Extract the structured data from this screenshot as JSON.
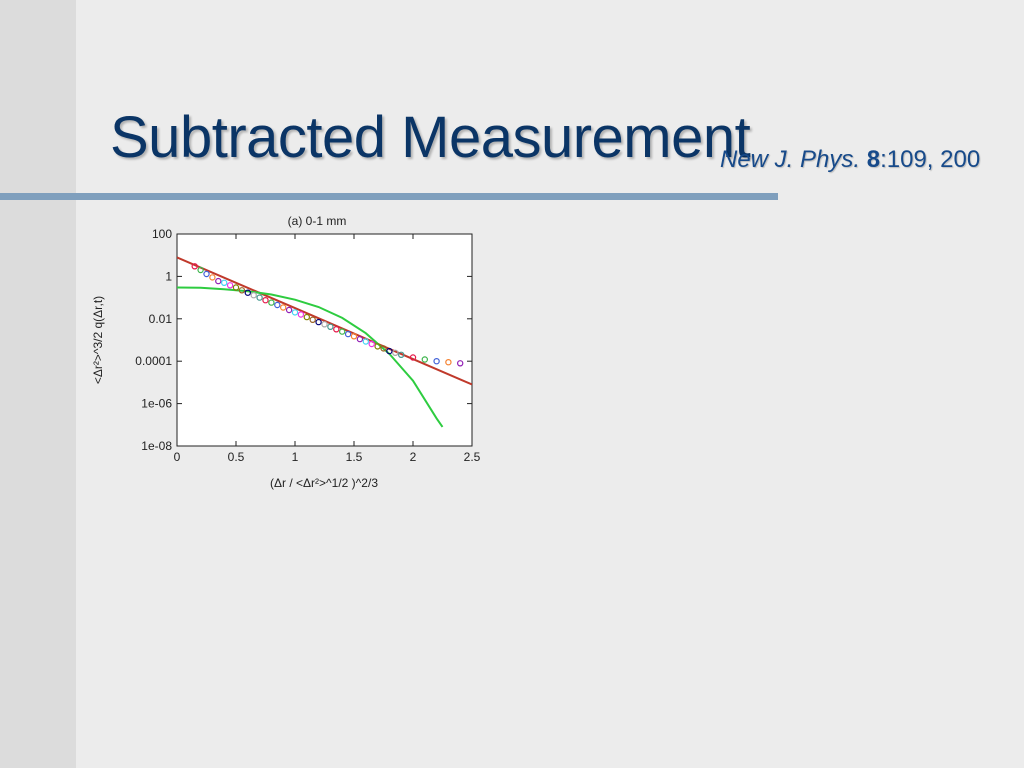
{
  "slide": {
    "title": "Subtracted Measurement",
    "citation": {
      "journal": "New J. Phys.",
      "volume": "8",
      "rest": ":109, 200"
    }
  },
  "colors": {
    "title": "#0b3566",
    "citation": "#174a8a",
    "rule": "#7f9fbd",
    "fit_red": "#c0392b",
    "fit_green": "#2ecc40"
  },
  "chart_data": {
    "type": "scatter",
    "title": "(a) 0-1 mm",
    "xlabel": "(Δr / <Δr²>^1/2 )^2/3",
    "ylabel": "<Δr²>^3/2 q(Δr,t)",
    "xlim": [
      0,
      2.5
    ],
    "ylim": [
      1e-08,
      100
    ],
    "yscale": "log",
    "x_ticks": [
      "0",
      "0.5",
      "1",
      "1.5",
      "2",
      "2.5"
    ],
    "y_ticks": [
      "100",
      "1",
      "0.01",
      "0.0001",
      "1e-06",
      "1e-08"
    ],
    "grid": false,
    "series": [
      {
        "type": "line",
        "x": [
          0,
          0.5,
          1.0,
          1.5,
          2.0,
          2.5
        ],
        "y": [
          7.9,
          0.5,
          0.032,
          0.002,
          0.000126,
          8e-06
        ]
      },
      {
        "type": "line",
        "x": [
          0,
          0.2,
          0.4,
          0.6,
          0.8,
          1.0,
          1.2,
          1.4,
          1.6,
          1.8,
          2.0,
          2.2,
          2.25
        ],
        "y": [
          0.3,
          0.29,
          0.25,
          0.2,
          0.14,
          0.08,
          0.036,
          0.011,
          0.0021,
          0.00022,
          1.2e-05,
          2e-07,
          8e-08
        ]
      },
      {
        "type": "scatter",
        "x": [
          0.15,
          0.2,
          0.25,
          0.3,
          0.35,
          0.4,
          0.45,
          0.5,
          0.55,
          0.6,
          0.65,
          0.7,
          0.75,
          0.8,
          0.85,
          0.9,
          0.95,
          1.0,
          1.05,
          1.1,
          1.15,
          1.2,
          1.25,
          1.3,
          1.35,
          1.4,
          1.45,
          1.5,
          1.55,
          1.6,
          1.65,
          1.7,
          1.75,
          1.8,
          1.85,
          1.9,
          2.0,
          2.1,
          2.2,
          2.3,
          2.4
        ],
        "y": [
          3.0,
          2.0,
          1.3,
          0.9,
          0.6,
          0.5,
          0.38,
          0.3,
          0.22,
          0.17,
          0.13,
          0.1,
          0.075,
          0.058,
          0.045,
          0.034,
          0.026,
          0.02,
          0.016,
          0.012,
          0.009,
          0.007,
          0.0055,
          0.0042,
          0.0032,
          0.0025,
          0.0019,
          0.0015,
          0.0011,
          0.00085,
          0.00065,
          0.0005,
          0.0004,
          0.0003,
          0.00025,
          0.0002,
          0.00015,
          0.00012,
          0.0001,
          9e-05,
          8e-05
        ]
      }
    ]
  }
}
